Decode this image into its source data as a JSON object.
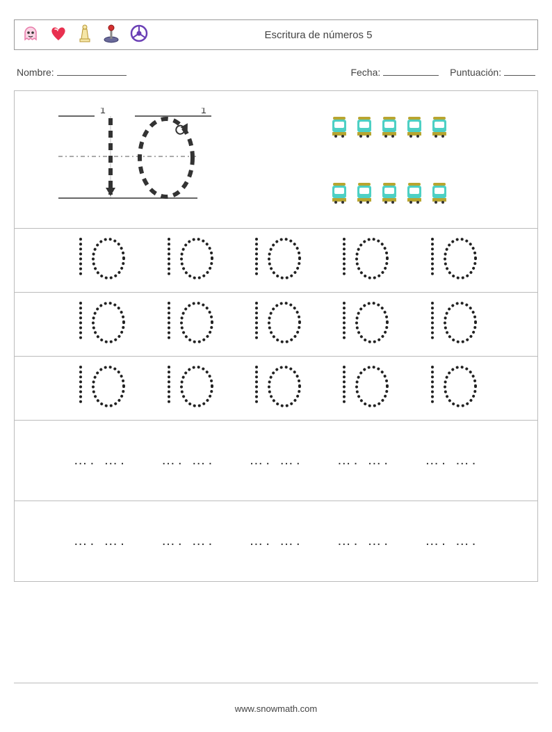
{
  "header": {
    "title": "Escritura de números 5",
    "icons": [
      "ghost",
      "heart",
      "chess",
      "joystick",
      "wheel"
    ],
    "icon_colors": {
      "ghost": "#f4a4c0",
      "heart": "#e8304f",
      "chess": "#d4b85a",
      "joystick_base": "#5a5a8a",
      "joystick_ball": "#d43030",
      "wheel": "#6a3fb5"
    }
  },
  "meta": {
    "name_label": "Nombre:",
    "date_label": "Fecha:",
    "score_label": "Puntuación:",
    "name_blank_width": 100,
    "date_blank_width": 80,
    "score_blank_width": 45
  },
  "guide": {
    "number": "10",
    "stroke_labels": [
      "1",
      "1"
    ]
  },
  "count_items": {
    "rows": 2,
    "per_row": 5,
    "item_type": "train",
    "body_color": "#4dd0c4",
    "wheel_color": "#b8a530"
  },
  "trace_rows": {
    "count": 3,
    "cells_per_row": 5,
    "digits": [
      "1",
      "0"
    ],
    "style": "dotted",
    "font_size": 60,
    "color": "#333333"
  },
  "blank_rows": {
    "count": 2,
    "cells_per_row": 5,
    "placeholder": "…. …."
  },
  "footer": {
    "text": "www.snowmath.com"
  },
  "colors": {
    "border": "#bbbbbb",
    "text": "#444444",
    "background": "#ffffff"
  }
}
